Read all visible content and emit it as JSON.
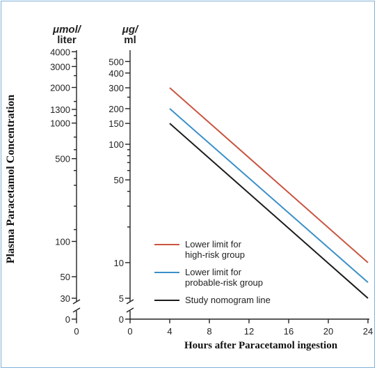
{
  "chart_data": {
    "type": "line",
    "title": "",
    "xlabel": "Hours after Paracetamol ingestion",
    "ylabel": "Plasma Paracetamol Concentration",
    "y_units_left": [
      "μmol/",
      "liter"
    ],
    "y_units_right": [
      "μg/",
      "ml"
    ],
    "x_scale": "linear",
    "y_scale": "log",
    "xlim": [
      0,
      24
    ],
    "ylim_ug_ml": [
      5,
      600
    ],
    "x_ticks": [
      0,
      4,
      8,
      12,
      16,
      20,
      24
    ],
    "y_ticks_ug_ml": [
      5,
      10,
      50,
      100,
      150,
      200,
      300,
      400,
      500
    ],
    "y_ticks_umol_liter": [
      {
        "label": "0",
        "at_ug_ml": 0
      },
      {
        "label": "30",
        "at_ug_ml": 5
      },
      {
        "label": "50",
        "at_ug_ml": 7.6
      },
      {
        "label": "100",
        "at_ug_ml": 15.1
      },
      {
        "label": "500",
        "at_ug_ml": 75.6
      },
      {
        "label": "1000",
        "at_ug_ml": 151
      },
      {
        "label": "1300",
        "at_ug_ml": 197
      },
      {
        "label": "2000",
        "at_ug_ml": 302
      },
      {
        "label": "3000",
        "at_ug_ml": 454
      },
      {
        "label": "4000",
        "at_ug_ml": 605
      }
    ],
    "grid": false,
    "legend_position": "bottom-left",
    "series": [
      {
        "name": "Lower limit for high-risk group",
        "legend_lines": [
          "Lower limit for",
          "high-risk group"
        ],
        "color": "#c9543f",
        "x": [
          4,
          24
        ],
        "y": [
          300,
          10
        ]
      },
      {
        "name": "Lower limit for probable-risk group",
        "legend_lines": [
          "Lower limit for",
          "probable-risk group"
        ],
        "color": "#3a8fc8",
        "x": [
          4,
          24
        ],
        "y": [
          200,
          6.8
        ]
      },
      {
        "name": "Study nomogram line",
        "legend_lines": [
          "Study nomogram line"
        ],
        "color": "#1b1b1b",
        "x": [
          4,
          24
        ],
        "y": [
          150,
          5
        ]
      }
    ]
  }
}
